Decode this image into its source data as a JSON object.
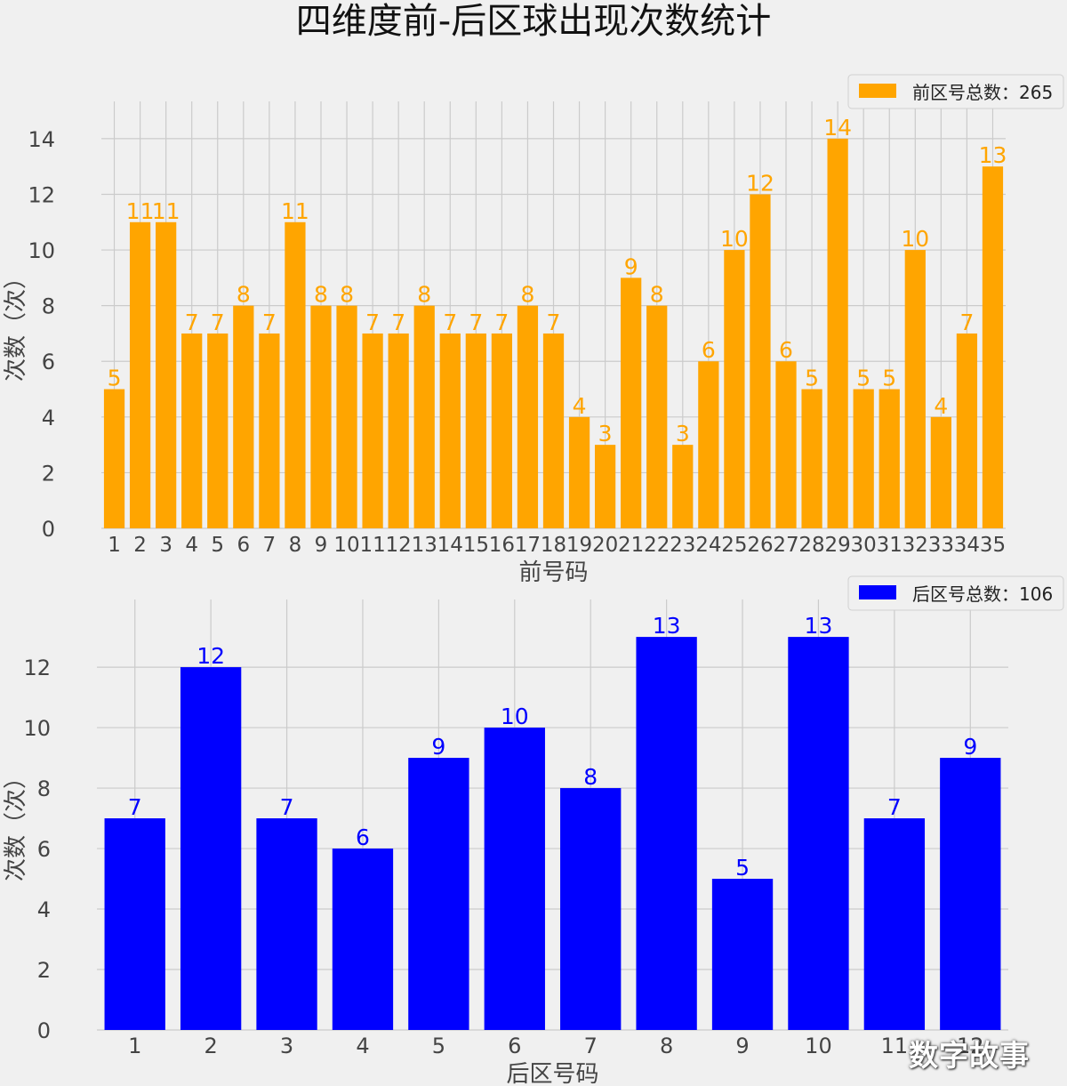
{
  "figure": {
    "title": "四维度前-后区球出现次数统计",
    "watermark": "数字故事"
  },
  "chart_data": [
    {
      "type": "bar",
      "xlabel": "前号码",
      "ylabel": "次数（次）",
      "ylim": [
        0,
        14.7
      ],
      "yticks": [
        0,
        2,
        4,
        6,
        8,
        10,
        12,
        14
      ],
      "grid": true,
      "legend_position": "top-right",
      "bar_color": "#ffa500",
      "label_color": "#ffa500",
      "categories": [
        "1",
        "2",
        "3",
        "4",
        "5",
        "6",
        "7",
        "8",
        "9",
        "10",
        "11",
        "12",
        "13",
        "14",
        "15",
        "16",
        "17",
        "18",
        "19",
        "20",
        "21",
        "22",
        "23",
        "24",
        "25",
        "26",
        "27",
        "28",
        "29",
        "30",
        "31",
        "32",
        "33",
        "34",
        "35"
      ],
      "series": [
        {
          "name": "前区号总数：265",
          "values": [
            5,
            11,
            11,
            7,
            7,
            8,
            7,
            11,
            8,
            8,
            7,
            7,
            8,
            7,
            7,
            7,
            8,
            7,
            4,
            3,
            9,
            8,
            3,
            6,
            10,
            12,
            6,
            5,
            14,
            5,
            5,
            10,
            4,
            7,
            13
          ]
        }
      ]
    },
    {
      "type": "bar",
      "xlabel": "后区号码",
      "ylabel": "次数（次）",
      "ylim": [
        0,
        13.65
      ],
      "yticks": [
        0,
        2,
        4,
        6,
        8,
        10,
        12
      ],
      "grid": true,
      "legend_position": "top-right",
      "bar_color": "#0000ff",
      "label_color": "#0000ff",
      "categories": [
        "1",
        "2",
        "3",
        "4",
        "5",
        "6",
        "7",
        "8",
        "9",
        "10",
        "11",
        "12"
      ],
      "series": [
        {
          "name": "后区号总数：106",
          "values": [
            7,
            12,
            7,
            6,
            9,
            10,
            8,
            13,
            5,
            13,
            7,
            9
          ]
        }
      ]
    }
  ]
}
